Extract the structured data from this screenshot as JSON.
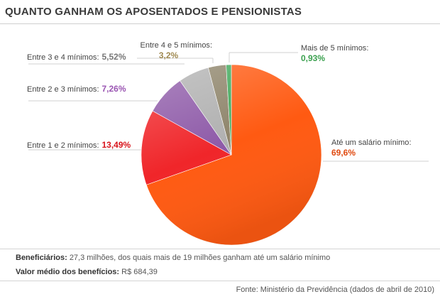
{
  "title": "QUANTO GANHAM OS APOSENTADOS E PENSIONISTAS",
  "chart_data": {
    "type": "pie",
    "slices": [
      {
        "label": "Até um salário mínimo",
        "value": 69.6,
        "display": "69,6%",
        "color": "#ff5a12",
        "value_color": "#e04a10"
      },
      {
        "label": "Entre 1 e 2 mínimos",
        "value": 13.49,
        "display": "13,49%",
        "color": "#f0262a",
        "value_color": "#d8141c"
      },
      {
        "label": "Entre 2 e 3 mínimos",
        "value": 7.26,
        "display": "7,26%",
        "color": "#8e5aa8",
        "value_color": "#9a55b2"
      },
      {
        "label": "Entre 3 e 4 mínimos",
        "value": 5.52,
        "display": "5,52%",
        "color": "#b0b0b0",
        "value_color": "#777777"
      },
      {
        "label": "Entre 4 e 5 mínimos",
        "value": 3.2,
        "display": "3,2%",
        "color": "#8d8369",
        "value_color": "#a08a52"
      },
      {
        "label": "Mais de 5 mínimos",
        "value": 0.93,
        "display": "0,93%",
        "color": "#3fa85a",
        "value_color": "#3aa04e"
      }
    ]
  },
  "footer": {
    "beneficiarios_label": "Beneficiários:",
    "beneficiarios_text": "27,3 milhões, dos quais mais de 19 milhões ganham até um salário mínimo",
    "valor_label": "Valor médio dos benefícios:",
    "valor_text": "R$ 684,39",
    "source": "Fonte: Ministério da Previdência (dados de abril de 2010)"
  }
}
